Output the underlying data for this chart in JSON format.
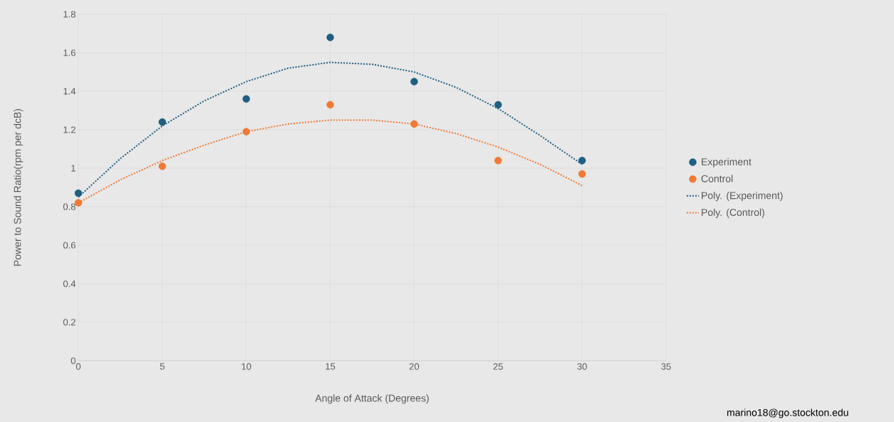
{
  "chart_data": {
    "type": "scatter",
    "xlabel": "Angle of Attack (Degrees)",
    "ylabel": "Power to Sound Ratio(rpm per dcB)",
    "xlim": [
      0,
      35
    ],
    "xticks": [
      0,
      5,
      10,
      15,
      20,
      25,
      30,
      35
    ],
    "ylim": [
      0,
      1.8
    ],
    "yticks": [
      0,
      0.2,
      0.4,
      0.6,
      0.8,
      1,
      1.2,
      1.4,
      1.6,
      1.8
    ],
    "grid": true,
    "legend": "right",
    "series": [
      {
        "name": "Experiment",
        "marker": "circle",
        "color": "#1f5f82",
        "x": [
          0,
          5,
          10,
          15,
          20,
          25,
          30
        ],
        "values": [
          0.87,
          1.24,
          1.36,
          1.68,
          1.45,
          1.33,
          1.04
        ]
      },
      {
        "name": "Control",
        "marker": "circle",
        "color": "#f07a35",
        "x": [
          0,
          5,
          10,
          15,
          20,
          25,
          30
        ],
        "values": [
          0.82,
          1.01,
          1.19,
          1.33,
          1.23,
          1.04,
          0.97
        ]
      },
      {
        "name": "Poly. (Experiment)",
        "type": "line",
        "marker": "none",
        "line_style": "dotted",
        "color": "#1f5f82",
        "x": [
          0,
          2.5,
          5,
          7.5,
          10,
          12.5,
          15,
          17.5,
          20,
          22.5,
          25,
          27.5,
          30
        ],
        "values": [
          0.85,
          1.05,
          1.22,
          1.35,
          1.45,
          1.52,
          1.55,
          1.54,
          1.5,
          1.42,
          1.31,
          1.17,
          1.02
        ]
      },
      {
        "name": "Poly. (Control)",
        "type": "line",
        "marker": "none",
        "line_style": "dotted",
        "color": "#f07a35",
        "x": [
          0,
          2.5,
          5,
          7.5,
          10,
          12.5,
          15,
          17.5,
          20,
          22.5,
          25,
          27.5,
          30
        ],
        "values": [
          0.82,
          0.94,
          1.04,
          1.12,
          1.19,
          1.23,
          1.25,
          1.25,
          1.23,
          1.18,
          1.11,
          1.02,
          0.91
        ]
      }
    ],
    "annotations": [
      "marino18@go.stockton.edu"
    ]
  }
}
